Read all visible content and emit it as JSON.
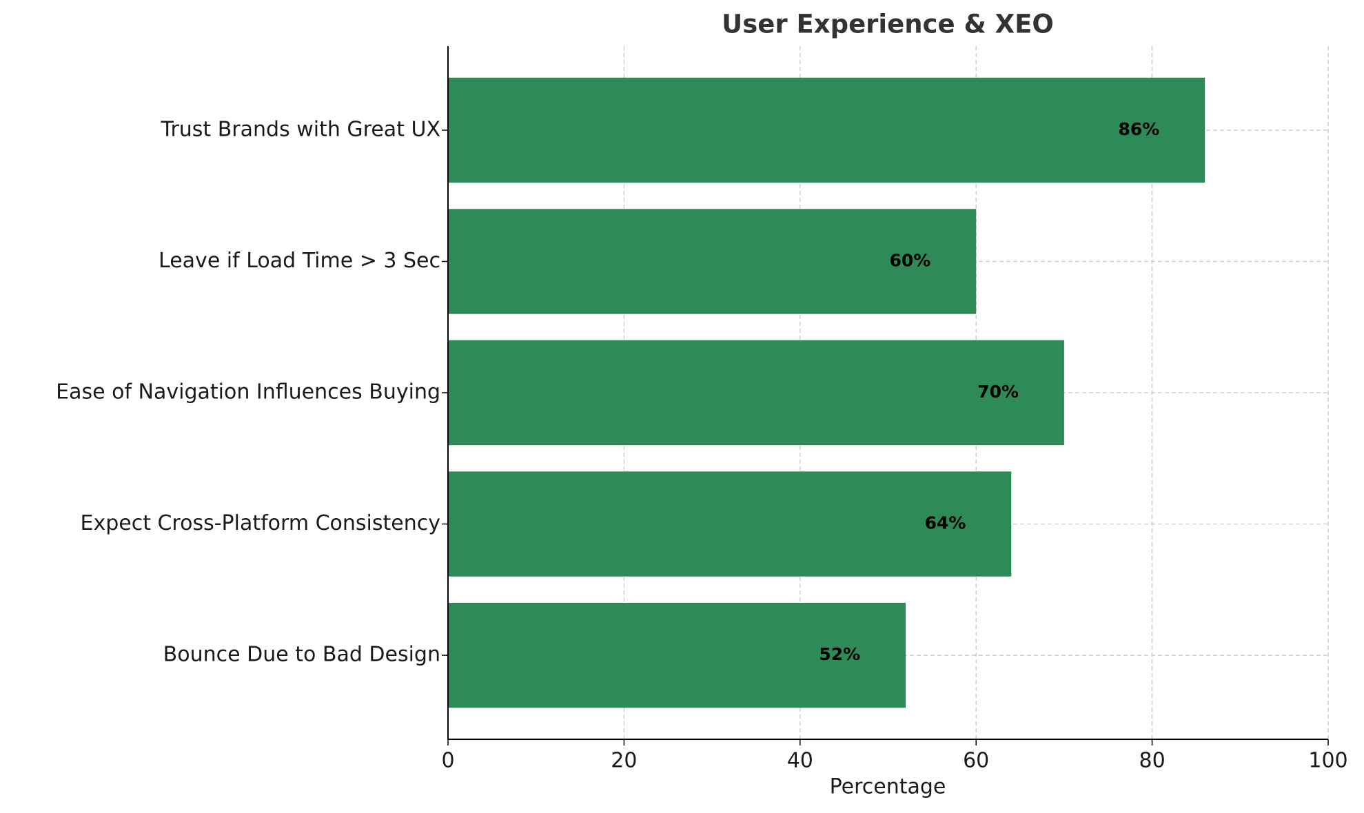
{
  "chart_data": {
    "type": "barh",
    "title": "User Experience & XEO",
    "x_label": "Percentage",
    "categories": [
      "Bounce Due to Bad Design",
      "Expect Cross-Platform Consistency",
      "Ease of Navigation Influences Buying",
      "Leave if Load Time > 3 Sec",
      "Trust Brands with Great UX"
    ],
    "values": [
      52,
      64,
      70,
      60,
      86
    ],
    "value_labels": [
      "52%",
      "64%",
      "70%",
      "60%",
      "86%"
    ],
    "color": "#2e8b57",
    "xlim": [
      0,
      100
    ],
    "xticks": [
      0,
      20,
      40,
      60,
      80,
      100
    ],
    "grid": true
  }
}
